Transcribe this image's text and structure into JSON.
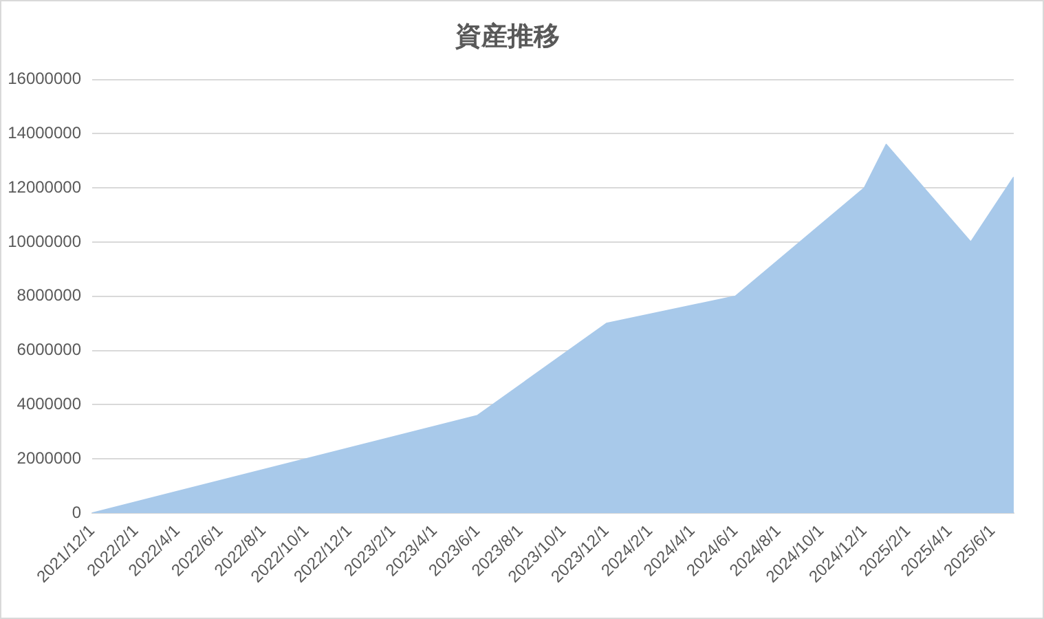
{
  "chart_data": {
    "type": "area",
    "title": "資産推移",
    "x": [
      "2021-12-01",
      "2023-06-01",
      "2023-12-01",
      "2024-06-01",
      "2024-12-01",
      "2025-01-01",
      "2025-05-01",
      "2025-07-01"
    ],
    "values": [
      0,
      3600000,
      7000000,
      8000000,
      12000000,
      13600000,
      10000000,
      12400000
    ],
    "color": "#a8c9ea",
    "xlim": [
      "2021-12-01",
      "2025-07-01"
    ],
    "xticks": [
      {
        "value": "2021-12-01",
        "label": "2021/12/1"
      },
      {
        "value": "2022-02-01",
        "label": "2022/2/1"
      },
      {
        "value": "2022-04-01",
        "label": "2022/4/1"
      },
      {
        "value": "2022-06-01",
        "label": "2022/6/1"
      },
      {
        "value": "2022-08-01",
        "label": "2022/8/1"
      },
      {
        "value": "2022-10-01",
        "label": "2022/10/1"
      },
      {
        "value": "2022-12-01",
        "label": "2022/12/1"
      },
      {
        "value": "2023-02-01",
        "label": "2023/2/1"
      },
      {
        "value": "2023-04-01",
        "label": "2023/4/1"
      },
      {
        "value": "2023-06-01",
        "label": "2023/6/1"
      },
      {
        "value": "2023-08-01",
        "label": "2023/8/1"
      },
      {
        "value": "2023-10-01",
        "label": "2023/10/1"
      },
      {
        "value": "2023-12-01",
        "label": "2023/12/1"
      },
      {
        "value": "2024-02-01",
        "label": "2024/2/1"
      },
      {
        "value": "2024-04-01",
        "label": "2024/4/1"
      },
      {
        "value": "2024-06-01",
        "label": "2024/6/1"
      },
      {
        "value": "2024-08-01",
        "label": "2024/8/1"
      },
      {
        "value": "2024-10-01",
        "label": "2024/10/1"
      },
      {
        "value": "2024-12-01",
        "label": "2024/12/1"
      },
      {
        "value": "2025-02-01",
        "label": "2025/2/1"
      },
      {
        "value": "2025-04-01",
        "label": "2025/4/1"
      },
      {
        "value": "2025-06-01",
        "label": "2025/6/1"
      }
    ],
    "ylim": [
      0,
      16000000
    ],
    "yticks": [
      0,
      2000000,
      4000000,
      6000000,
      8000000,
      10000000,
      12000000,
      14000000,
      16000000
    ],
    "grid": "y"
  }
}
